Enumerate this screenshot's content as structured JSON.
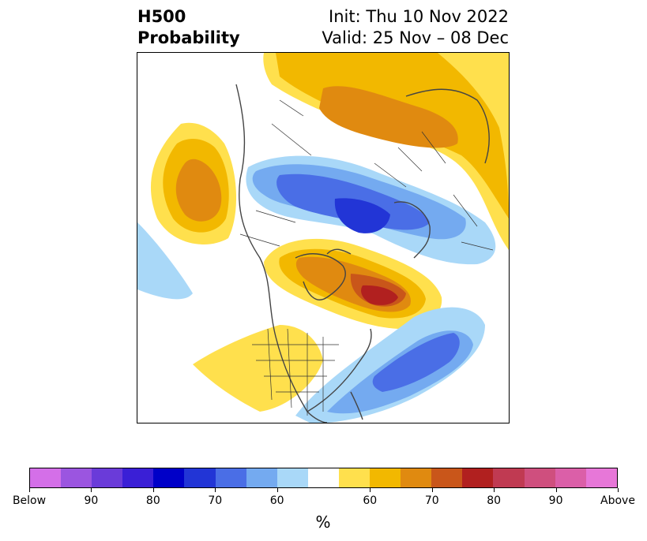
{
  "title": {
    "left_line1": "H500",
    "left_line2": "Probability",
    "right_line1": "Init: Thu 10 Nov 2022",
    "right_line2": "Valid: 25 Nov – 08 Dec"
  },
  "colorbar": {
    "unit": "%",
    "colors": [
      "#d46fe8",
      "#9b55e0",
      "#6a3bd9",
      "#3a1fd6",
      "#0000c8",
      "#2235d6",
      "#4a6ee6",
      "#74aaf0",
      "#a9d8f8",
      "#ffffff",
      "#ffe04d",
      "#f2b800",
      "#e08a10",
      "#c9561a",
      "#b1201f",
      "#c03a52",
      "#cf4f7e",
      "#db5fa8",
      "#e777d8"
    ],
    "ticks": [
      "Below",
      "90",
      "80",
      "70",
      "60",
      "60",
      "70",
      "80",
      "90",
      "Above"
    ]
  },
  "map": {
    "features": [
      "coastlines",
      "country-borders",
      "state-borders",
      "probability-shading"
    ]
  }
}
